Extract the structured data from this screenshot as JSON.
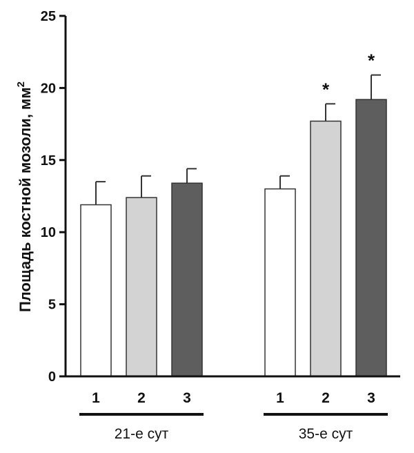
{
  "chart_data": {
    "type": "bar",
    "ylabel": "Площадь костной мозоли, мм",
    "ylabel_superscript": "2",
    "ylim": [
      0,
      25
    ],
    "yticks": [
      "0",
      "5",
      "10",
      "15",
      "20",
      "25"
    ],
    "grid": false,
    "groups": [
      {
        "label": "21-е сут",
        "bars": [
          {
            "category": "1",
            "value": 11.9,
            "error": 1.6,
            "color": "#ffffff",
            "mark": ""
          },
          {
            "category": "2",
            "value": 12.4,
            "error": 1.5,
            "color": "#d3d3d3",
            "mark": ""
          },
          {
            "category": "3",
            "value": 13.4,
            "error": 1.0,
            "color": "#5e5e5e",
            "mark": ""
          }
        ]
      },
      {
        "label": "35-е сут",
        "bars": [
          {
            "category": "1",
            "value": 13.0,
            "error": 0.9,
            "color": "#ffffff",
            "mark": ""
          },
          {
            "category": "2",
            "value": 17.7,
            "error": 1.2,
            "color": "#d3d3d3",
            "mark": "*"
          },
          {
            "category": "3",
            "value": 19.2,
            "error": 1.7,
            "color": "#5e5e5e",
            "mark": "*"
          }
        ]
      }
    ]
  }
}
